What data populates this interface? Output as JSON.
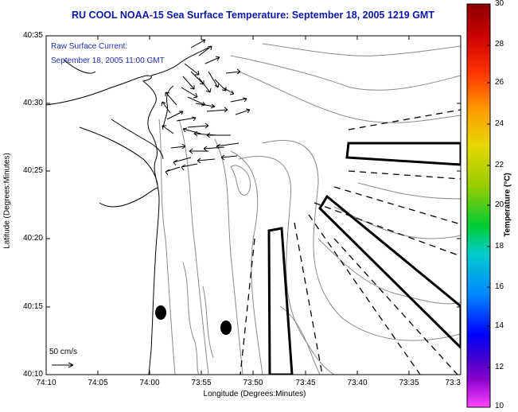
{
  "title": "RU COOL  NOAA-15  Sea Surface Temperature:  September 18, 2005 1219 GMT",
  "annotation": {
    "line1": "Raw Surface Current:",
    "line2": "September 18, 2005 11:00 GMT"
  },
  "axes": {
    "x_title": "Longitude (Degrees:Minutes)",
    "y_title": "Latitude (Degrees:Minutes)",
    "x_ticks": [
      "74:10",
      "74:05",
      "74:00",
      "73:55",
      "73:50",
      "73:45",
      "73:40",
      "73:35",
      "73:3"
    ],
    "y_ticks": [
      "40:35",
      "40:30",
      "40:25",
      "40:20",
      "40:15",
      "40:10"
    ]
  },
  "scale_vector": {
    "label": "50 cm/s"
  },
  "colorbar": {
    "title": "Temperature (°C)",
    "ticks": [
      "30",
      "28",
      "26",
      "24",
      "22",
      "20",
      "18",
      "16",
      "14",
      "12",
      "10"
    ],
    "colors": [
      "#8b0000",
      "#cc0000",
      "#ff3300",
      "#ff9900",
      "#e6d800",
      "#99cc00",
      "#00cc33",
      "#00cccc",
      "#0088ff",
      "#0000ff",
      "#4400cc",
      "#8800cc",
      "#ff44ff"
    ]
  }
}
